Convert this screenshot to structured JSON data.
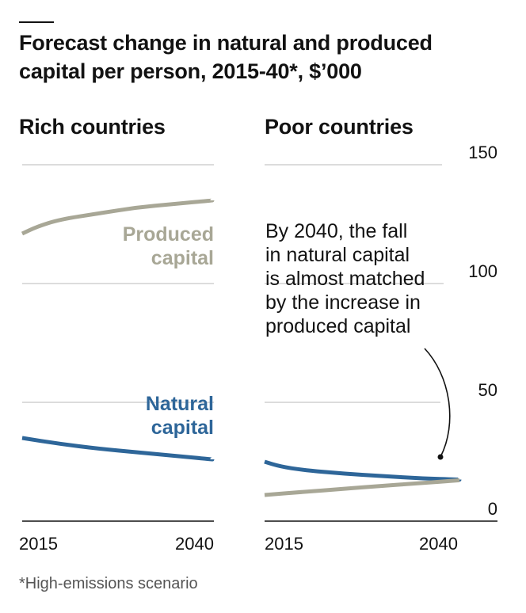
{
  "title": "Forecast change in natural and produced capital per person, 2015-40*, $’000",
  "footnote": "*High-emissions scenario",
  "colors": {
    "natural": "#2e6699",
    "produced": "#a8a796",
    "grid": "#c8c8c8",
    "axis": "#121212",
    "text": "#121212",
    "muted": "#555555"
  },
  "chart_data": [
    {
      "type": "line",
      "title": "Rich countries",
      "x_ticks": [
        "2015",
        "2040"
      ],
      "y_ticks": [
        0,
        50,
        100,
        150
      ],
      "ylim": [
        0,
        150
      ],
      "xlim": [
        2015,
        2040
      ],
      "grid": true,
      "series": [
        {
          "name": "Produced capital",
          "color": "#a8a796",
          "x": [
            2015,
            2017,
            2020,
            2025,
            2030,
            2035,
            2040
          ],
          "values": [
            121,
            124,
            127,
            129.5,
            132,
            133.5,
            135
          ]
        },
        {
          "name": "Natural capital",
          "color": "#2e6699",
          "x": [
            2015,
            2020,
            2025,
            2030,
            2035,
            2040
          ],
          "values": [
            35,
            32.5,
            30.5,
            29,
            27.5,
            26
          ]
        }
      ]
    },
    {
      "type": "line",
      "title": "Poor countries",
      "x_ticks": [
        "2015",
        "2040"
      ],
      "y_ticks": [
        0,
        50,
        100,
        150
      ],
      "y_tick_labels": [
        "0",
        "50",
        "100",
        "150"
      ],
      "ylim": [
        0,
        150
      ],
      "xlim": [
        2015,
        2040
      ],
      "grid": true,
      "annotation": "By 2040, the fall in natural capital is almost matched by the increase in produced capital",
      "annotation_lines": [
        "By 2040, the fall",
        "in natural capital",
        "is almost matched",
        "by the increase in",
        "produced capital"
      ],
      "series": [
        {
          "name": "Natural capital",
          "color": "#2e6699",
          "x": [
            2015,
            2017,
            2020,
            2025,
            2030,
            2035,
            2040
          ],
          "values": [
            25,
            23,
            21.5,
            20,
            19,
            18,
            17.5
          ]
        },
        {
          "name": "Produced capital",
          "color": "#a8a796",
          "x": [
            2015,
            2020,
            2025,
            2030,
            2035,
            2040
          ],
          "values": [
            11,
            12.3,
            13.6,
            14.8,
            16,
            17.2
          ]
        }
      ]
    }
  ]
}
